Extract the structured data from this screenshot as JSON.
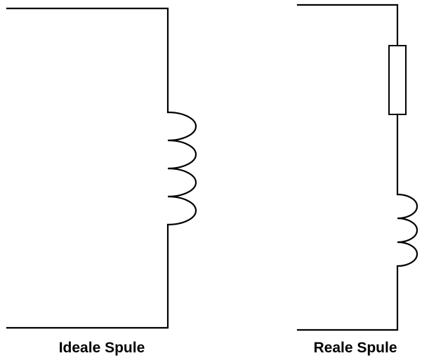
{
  "labels": {
    "ideal": "Ideale Spule",
    "real": "Reale Spule"
  },
  "colors": {
    "line": "#000000",
    "background": "#ffffff"
  }
}
